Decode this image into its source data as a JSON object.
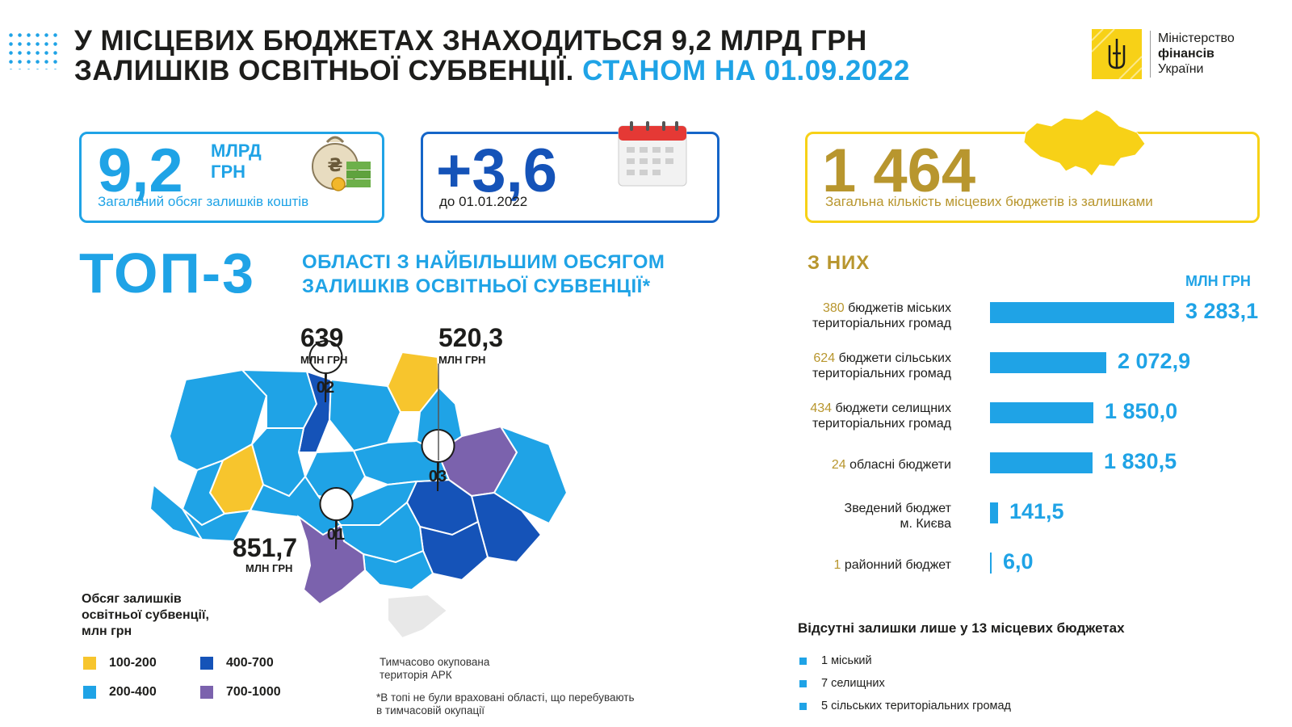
{
  "header": {
    "title_line1": "У МІСЦЕВИХ БЮДЖЕТАХ ЗНАХОДИТЬСЯ 9,2 МЛРД ГРН",
    "title_line2": "ЗАЛИШКІВ ОСВІТНЬОЇ СУБВЕНЦІЇ.",
    "title_date": "СТАНОМ НА 01.09.2022"
  },
  "logo": {
    "line1": "Міністерство",
    "line2": "фінансів",
    "line3": "України"
  },
  "stats": {
    "total": {
      "value": "9,2",
      "unit1": "МЛРД",
      "unit2": "ГРН",
      "caption": "Загальний обсяг залишків коштів"
    },
    "delta": {
      "value": "+3,6",
      "caption": "до 01.01.2022"
    },
    "count": {
      "value": "1 464",
      "caption": "Загальна кількість місцевих бюджетів із залишками"
    }
  },
  "top3": {
    "title": "ТОП-3",
    "subtitle_line1": "ОБЛАСТІ З НАЙБІЛЬШИМ ОБСЯГОМ",
    "subtitle_line2": "ЗАЛИШКІВ ОСВІТНЬОЇ СУБВЕНЦІЇ*",
    "pins": [
      {
        "rank": "01",
        "value": "851,7",
        "unit": "МЛН ГРН"
      },
      {
        "rank": "02",
        "value": "639",
        "unit": "МЛН ГРН"
      },
      {
        "rank": "03",
        "value": "520,3",
        "unit": "МЛН ГРН"
      }
    ]
  },
  "legend": {
    "title_line1": "Обсяг залишків",
    "title_line2": "освітньої субвенції,",
    "title_line3": "млн грн",
    "items": [
      {
        "label": "100-200",
        "color": "#f7c52d"
      },
      {
        "label": "400-700",
        "color": "#1553b8"
      },
      {
        "label": "200-400",
        "color": "#1fa3e6"
      },
      {
        "label": "700-1000",
        "color": "#7b62ad"
      }
    ]
  },
  "notes": {
    "crimea_line1": "Тимчасово окупована",
    "crimea_line2": "територія АРК",
    "footnote_line1": "*В топі не були враховані області, що перебувають",
    "footnote_line2": "в тимчасовій окупації"
  },
  "breakdown": {
    "heading": "З НИХ",
    "unit": "МЛН ГРН",
    "rows": [
      {
        "count": "380",
        "line1": "бюджетів міських",
        "line2": "територіальних громад",
        "display": "3 283,1"
      },
      {
        "count": "624",
        "line1": "бюджети сільських",
        "line2": "територіальних громад",
        "display": "2 072,9"
      },
      {
        "count": "434",
        "line1": "бюджети селищних",
        "line2": "територіальних громад",
        "display": "1 850,0"
      },
      {
        "count": "24",
        "line1": "обласні бюджети",
        "line2": "",
        "display": "1 830,5"
      },
      {
        "count": "",
        "line1": "Зведений бюджет",
        "line2": "м. Києва",
        "display": "141,5"
      },
      {
        "count": "1",
        "line1": "районний бюджет",
        "line2": "",
        "display": "6,0"
      }
    ]
  },
  "absent": {
    "title": "Відсутні залишки лише у 13 місцевих бюджетах",
    "items": [
      "1 міський",
      "7 селищних",
      "5 сільських територіальних громад"
    ]
  },
  "chart_data": {
    "type": "bar",
    "orientation": "horizontal",
    "title": "З НИХ",
    "unit": "МЛН ГРН",
    "categories": [
      "380 бюджетів міських територіальних громад",
      "624 бюджети сільських територіальних громад",
      "434 бюджети селищних територіальних громад",
      "24 обласні бюджети",
      "Зведений бюджет м. Києва",
      "1 районний бюджет"
    ],
    "values": [
      3283.1,
      2072.9,
      1850.0,
      1830.5,
      141.5,
      6.0
    ],
    "color": "#1fa3e6"
  }
}
